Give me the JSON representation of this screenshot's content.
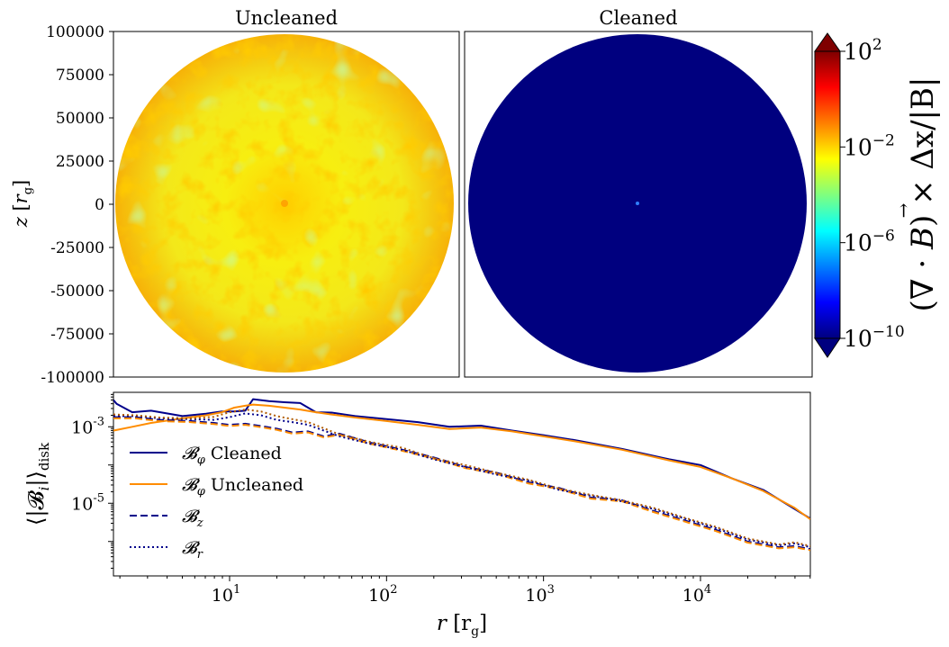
{
  "chart_data": [
    {
      "type": "heatmap",
      "title": "Uncleaned",
      "ylabel": "z [r_g]",
      "ylim": [
        -100000,
        100000
      ],
      "yticks": [
        100000,
        75000,
        50000,
        25000,
        0,
        -25000,
        -50000,
        -75000,
        -100000
      ],
      "ytick_labels": [
        "100000",
        "75000",
        "50000",
        "25000",
        "0",
        "-25000",
        "-50000",
        "-75000",
        "-100000"
      ],
      "domain": "disk of radius ~97000 r_g",
      "dominant_value_log10": -2,
      "description_values": {
        "min_log10": -6,
        "max_log10": 0
      }
    },
    {
      "type": "heatmap",
      "title": "Cleaned",
      "ylim": [
        -100000,
        100000
      ],
      "dominant_value_log10": -10,
      "center_value_log10": -7
    }
  ],
  "colorbar": {
    "label": "(∇ · B⃗) × Δx/|B|",
    "label_main": "(∇ · ",
    "label_vec": "B",
    "label_tail": ") × Δx/|B|",
    "ticks": [
      {
        "base": "10",
        "exp": "2",
        "log10": 2
      },
      {
        "base": "10",
        "exp": "−2",
        "log10": -2
      },
      {
        "base": "10",
        "exp": "−6",
        "log10": -6
      },
      {
        "base": "10",
        "exp": "−10",
        "log10": -10
      }
    ],
    "range_log10": [
      -10,
      2
    ],
    "colormap": [
      "#00007f",
      "#0000ff",
      "#007fff",
      "#00ffff",
      "#7fff7f",
      "#ffff00",
      "#ff7f00",
      "#ff0000",
      "#7f0000"
    ]
  },
  "line_chart": {
    "type": "line",
    "xscale": "log",
    "yscale": "log",
    "xlim_log10": [
      0.26,
      4.7
    ],
    "ylim_log10": [
      -6.9,
      -2.1
    ],
    "xlabel_main": "r",
    "xlabel_unit": "[r",
    "xlabel_sub": "g",
    "xlabel_close": "]",
    "ylabel": "⟨|𝓑ᵢ|⟩disk",
    "ylabel_main": "⟨|𝓑",
    "ylabel_i": "i",
    "ylabel_close": "|⟩",
    "ylabel_sub": "disk",
    "xticks": [
      {
        "base": "10",
        "exp": "1",
        "log10": 1
      },
      {
        "base": "10",
        "exp": "2",
        "log10": 2
      },
      {
        "base": "10",
        "exp": "3",
        "log10": 3
      },
      {
        "base": "10",
        "exp": "4",
        "log10": 4
      }
    ],
    "yticks": [
      {
        "base": "10",
        "exp": "-3",
        "log10": -3
      },
      {
        "base": "10",
        "exp": "-5",
        "log10": -5
      }
    ],
    "legend": [
      {
        "name": "𝓑φ Cleaned",
        "sym": "𝓑",
        "sub": "φ",
        "text": "Cleaned",
        "color": "#00008b",
        "dash": "solid"
      },
      {
        "name": "𝓑φ Uncleaned",
        "sym": "𝓑",
        "sub": "φ",
        "text": "Uncleaned",
        "color": "#ff8c00",
        "dash": "solid"
      },
      {
        "name": "𝓑z",
        "sym": "𝓑",
        "sub": "z",
        "text": "",
        "color": "#00008b",
        "dash": "dashed"
      },
      {
        "name": "𝓑r",
        "sym": "𝓑",
        "sub": "r",
        "text": "",
        "color": "#00008b",
        "dash": "dotted"
      }
    ],
    "series": [
      {
        "name": "Bphi Cleaned",
        "color": "#00008b",
        "dash": "solid",
        "x": [
          0.26,
          0.28,
          0.38,
          0.5,
          0.7,
          0.85,
          0.95,
          1.03,
          1.1,
          1.15,
          1.25,
          1.35,
          1.45,
          1.55,
          1.65,
          1.8,
          2.0,
          2.2,
          2.4,
          2.6,
          2.8,
          3.0,
          3.2,
          3.5,
          3.8,
          4.0,
          4.2,
          4.4,
          4.6,
          4.7
        ],
        "y": [
          -2.3,
          -2.4,
          -2.62,
          -2.58,
          -2.72,
          -2.66,
          -2.6,
          -2.6,
          -2.58,
          -2.28,
          -2.33,
          -2.36,
          -2.38,
          -2.62,
          -2.63,
          -2.72,
          -2.8,
          -2.88,
          -3.0,
          -2.97,
          -3.1,
          -3.22,
          -3.35,
          -3.58,
          -3.85,
          -4.0,
          -4.35,
          -4.65,
          -5.15,
          -5.4
        ]
      },
      {
        "name": "Bphi Uncleaned",
        "color": "#ff8c00",
        "dash": "solid",
        "x": [
          0.26,
          0.38,
          0.5,
          0.7,
          0.85,
          0.95,
          1.03,
          1.1,
          1.15,
          1.25,
          1.35,
          1.45,
          1.55,
          1.65,
          1.8,
          2.0,
          2.2,
          2.4,
          2.6,
          2.8,
          3.0,
          3.2,
          3.5,
          3.8,
          4.0,
          4.2,
          4.4,
          4.6,
          4.7
        ],
        "y": [
          -3.1,
          -3.0,
          -2.9,
          -2.78,
          -2.7,
          -2.62,
          -2.5,
          -2.45,
          -2.42,
          -2.45,
          -2.5,
          -2.55,
          -2.62,
          -2.68,
          -2.76,
          -2.85,
          -2.95,
          -3.06,
          -3.02,
          -3.12,
          -3.25,
          -3.38,
          -3.6,
          -3.88,
          -4.05,
          -4.35,
          -4.68,
          -5.12,
          -5.42
        ]
      },
      {
        "name": "Bz Cleaned",
        "color": "#00008b",
        "dash": "dashed",
        "x": [
          0.26,
          0.4,
          0.55,
          0.75,
          0.9,
          1.0,
          1.1,
          1.2,
          1.3,
          1.4,
          1.5,
          1.6,
          1.7,
          1.9,
          2.1,
          2.3,
          2.5,
          2.7,
          2.9,
          3.1,
          3.3,
          3.5,
          3.7,
          3.9,
          4.1,
          4.3,
          4.5,
          4.6,
          4.7
        ],
        "y": [
          -2.75,
          -2.75,
          -2.82,
          -2.85,
          -2.9,
          -2.95,
          -2.92,
          -2.98,
          -3.05,
          -3.15,
          -3.12,
          -3.25,
          -3.18,
          -3.42,
          -3.6,
          -3.8,
          -4.05,
          -4.2,
          -4.45,
          -4.6,
          -4.85,
          -4.92,
          -5.2,
          -5.45,
          -5.7,
          -6.0,
          -6.15,
          -6.12,
          -6.2
        ]
      },
      {
        "name": "Bz Uncleaned",
        "color": "#ff8c00",
        "dash": "dashed",
        "x": [
          0.26,
          0.4,
          0.55,
          0.75,
          0.9,
          1.0,
          1.1,
          1.2,
          1.3,
          1.4,
          1.5,
          1.6,
          1.7,
          1.9,
          2.1,
          2.3,
          2.5,
          2.7,
          2.9,
          3.1,
          3.3,
          3.5,
          3.7,
          3.9,
          4.1,
          4.3,
          4.5,
          4.6,
          4.7
        ],
        "y": [
          -2.78,
          -2.78,
          -2.85,
          -2.88,
          -2.93,
          -2.98,
          -2.95,
          -3.01,
          -3.08,
          -3.18,
          -3.15,
          -3.28,
          -3.21,
          -3.45,
          -3.63,
          -3.83,
          -4.08,
          -4.23,
          -4.48,
          -4.63,
          -4.88,
          -4.95,
          -5.23,
          -5.48,
          -5.73,
          -6.03,
          -6.18,
          -6.15,
          -6.23
        ]
      },
      {
        "name": "Br Cleaned",
        "color": "#00008b",
        "dash": "dotted",
        "x": [
          0.26,
          0.4,
          0.55,
          0.75,
          0.9,
          1.0,
          1.1,
          1.2,
          1.3,
          1.4,
          1.5,
          1.7,
          1.9,
          2.1,
          2.3,
          2.5,
          2.7,
          2.9,
          3.1,
          3.3,
          3.5,
          3.7,
          3.9,
          4.1,
          4.3,
          4.5,
          4.6,
          4.7
        ],
        "y": [
          -2.72,
          -2.72,
          -2.78,
          -2.8,
          -2.82,
          -2.75,
          -2.65,
          -2.7,
          -2.82,
          -2.88,
          -2.95,
          -3.25,
          -3.45,
          -3.6,
          -3.85,
          -4.05,
          -4.25,
          -4.4,
          -4.65,
          -4.8,
          -4.95,
          -5.15,
          -5.4,
          -5.65,
          -5.95,
          -6.1,
          -6.05,
          -6.15
        ]
      },
      {
        "name": "Br Uncleaned",
        "color": "#b05a00",
        "dash": "dotted",
        "x": [
          0.26,
          0.4,
          0.55,
          0.75,
          0.9,
          1.0,
          1.1,
          1.2,
          1.3,
          1.4,
          1.5,
          1.7,
          1.9,
          2.1,
          2.3,
          2.5,
          2.7,
          2.9,
          3.1,
          3.3,
          3.5,
          3.7,
          3.9,
          4.1,
          4.3,
          4.5,
          4.6,
          4.7
        ],
        "y": [
          -2.68,
          -2.7,
          -2.76,
          -2.78,
          -2.74,
          -2.62,
          -2.55,
          -2.6,
          -2.72,
          -2.8,
          -2.88,
          -3.2,
          -3.4,
          -3.55,
          -3.82,
          -4.0,
          -4.2,
          -4.38,
          -4.62,
          -4.78,
          -4.92,
          -5.12,
          -5.38,
          -5.62,
          -5.92,
          -6.08,
          -6.02,
          -6.12
        ]
      }
    ]
  }
}
